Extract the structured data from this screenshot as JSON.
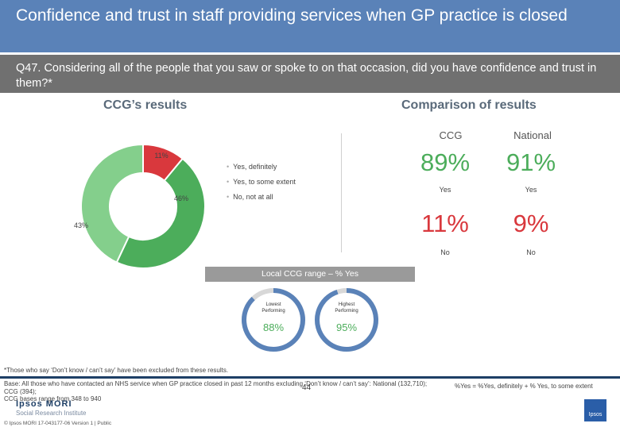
{
  "header": {
    "title": "Confidence and trust in staff providing services when GP practice is closed",
    "question": "Q47. Considering all of the people that you saw or spoke to on that occasion, did you have confidence and trust in them?*"
  },
  "sections": {
    "ccg_results": "CCG’s results",
    "comparison": "Comparison of results"
  },
  "chart_data": {
    "type": "pie",
    "style": "donut",
    "slices": [
      {
        "label": "Yes, definitely",
        "value": 46,
        "display": "46%",
        "color": "#4cad5b"
      },
      {
        "label": "Yes, to some extent",
        "value": 43,
        "display": "43%",
        "color": "#84cf8c"
      },
      {
        "label": "No, not at all",
        "value": 11,
        "display": "11%",
        "color": "#d9383d"
      }
    ],
    "legend": [
      "Yes, definitely",
      "Yes, to some extent",
      "No, not at all"
    ]
  },
  "comparison": {
    "col_ccg": "CCG",
    "col_national": "National",
    "yes_ccg": "89%",
    "yes_national": "91%",
    "yes_label": "Yes",
    "no_ccg": "11%",
    "no_national": "9%",
    "no_label": "No"
  },
  "range": {
    "label": "Local CCG range – % Yes",
    "lowest_caption_1": "Lowest",
    "lowest_caption_2": "Performing",
    "lowest_value": "88%",
    "lowest_fraction": 0.88,
    "highest_caption_1": "Highest",
    "highest_caption_2": "Performing",
    "highest_value": "95%",
    "highest_fraction": 0.95,
    "gauge_color": "#5a82b8",
    "gauge_value_color": "#4cad5b"
  },
  "footer": {
    "footnote": "*Those who say ‘Don’t know / can’t say’ have been excluded from these results.",
    "base_line1": "Base: All those who have contacted an NHS service when GP practice closed in past 12 months excluding ‘Don’t know / can’t say’: National (132,710);",
    "base_line2": "CCG (394);",
    "base_line3": "CCG bases range from 348 to 940",
    "formula": "%Yes = %Yes, definitely + % Yes, to some extent",
    "page_number": "44",
    "logo_line1": "Ipsos MORI",
    "logo_line2": "Social Research Institute",
    "copyright": "© Ipsos MORI    17-043177-06 Version 1 | Public",
    "corner_logo": "Ipsos"
  }
}
